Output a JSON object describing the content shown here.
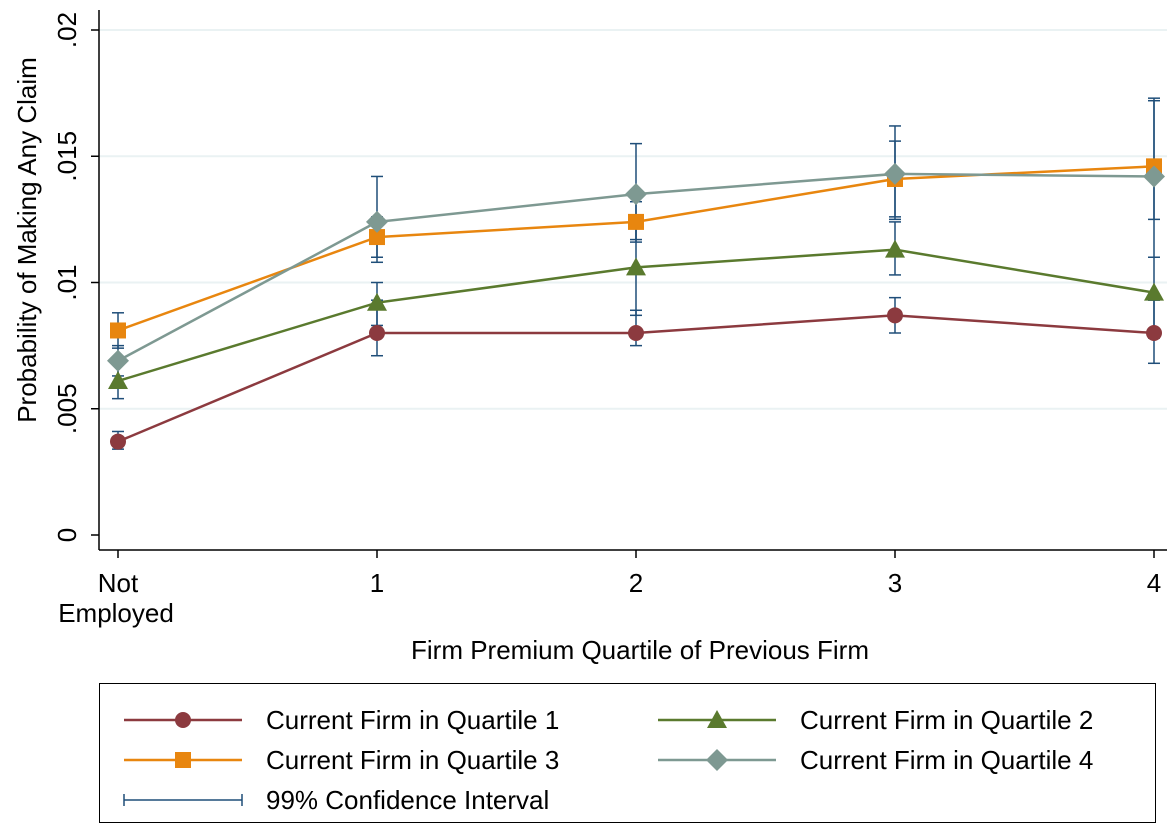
{
  "chart_data": {
    "type": "line",
    "title": "",
    "xlabel": "Firm Premium Quartile of Previous Firm",
    "ylabel": "Probability of Making Any Claim",
    "x": [
      0,
      1,
      2,
      3,
      4
    ],
    "x_tick_labels": [
      [
        "Not",
        "Employed"
      ],
      [
        "1"
      ],
      [
        "2"
      ],
      [
        "3"
      ],
      [
        "4"
      ]
    ],
    "ylim": [
      0,
      0.02
    ],
    "y_ticks": [
      0,
      0.005,
      0.01,
      0.015,
      0.02
    ],
    "y_tick_labels": [
      "0",
      ".005",
      ".01",
      ".015",
      ".02"
    ],
    "grid": true,
    "legend_position": "bottom",
    "series": [
      {
        "name": "Current Firm in Quartile 1",
        "color": "#8c3a3f",
        "marker": "circle",
        "values": [
          0.0037,
          0.008,
          0.008,
          0.0087,
          0.008
        ],
        "ci_low": [
          0.0034,
          0.0071,
          0.0075,
          0.008,
          0.0068
        ],
        "ci_high": [
          0.0041,
          0.0093,
          0.0089,
          0.0094,
          0.0093
        ]
      },
      {
        "name": "Current Firm in Quartile 2",
        "color": "#5a7a2e",
        "marker": "triangle",
        "values": [
          0.0061,
          0.0092,
          0.0106,
          0.0113,
          0.0096
        ],
        "ci_low": [
          0.0054,
          0.0083,
          0.0087,
          0.0103,
          0.0078
        ],
        "ci_high": [
          0.0068,
          0.01,
          0.0125,
          0.0124,
          0.011
        ]
      },
      {
        "name": "Current Firm in Quartile 3",
        "color": "#e8860f",
        "marker": "square",
        "values": [
          0.0081,
          0.0118,
          0.0124,
          0.0141,
          0.0146
        ],
        "ci_low": [
          0.0074,
          0.011,
          0.0117,
          0.0126,
          0.0125
        ],
        "ci_high": [
          0.0088,
          0.0126,
          0.0132,
          0.0156,
          0.0172
        ]
      },
      {
        "name": "Current Firm in Quartile 4",
        "color": "#7e9992",
        "marker": "diamond",
        "values": [
          0.0069,
          0.0124,
          0.0135,
          0.0143,
          0.0142
        ],
        "ci_low": [
          0.0063,
          0.0108,
          0.0116,
          0.0125,
          0.011
        ],
        "ci_high": [
          0.0075,
          0.0142,
          0.0155,
          0.0162,
          0.0173
        ]
      }
    ],
    "ci_label": "99% Confidence Interval",
    "ci_color": "#1f4e79"
  }
}
